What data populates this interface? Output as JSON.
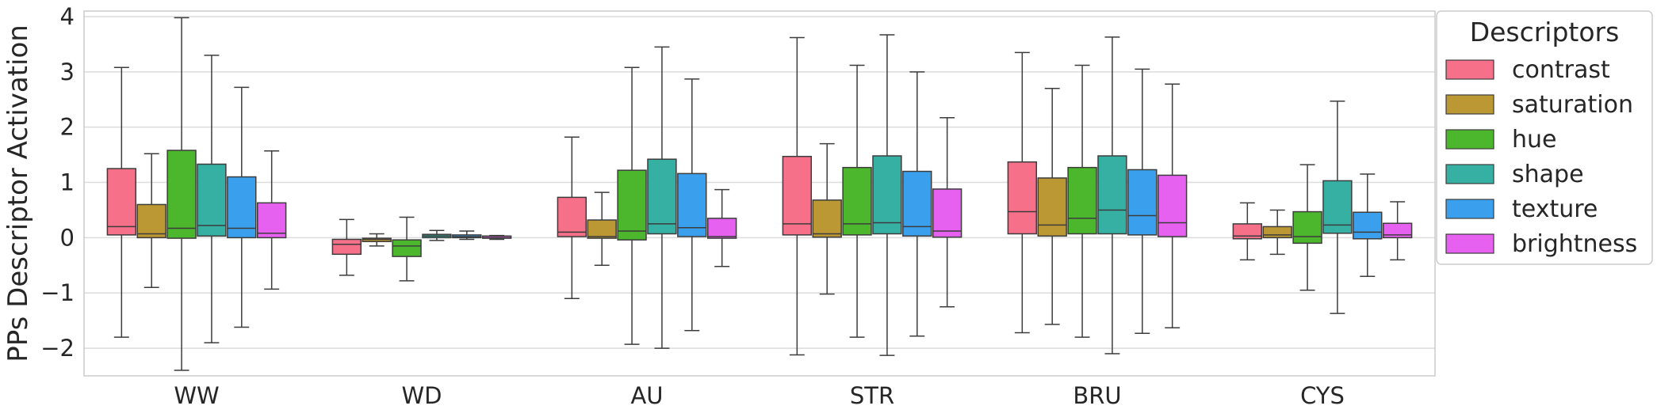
{
  "chart_data": {
    "type": "box",
    "title": "",
    "xlabel": "",
    "ylabel": "PPs Descriptor Activation",
    "ylim": [
      -2.5,
      4.1
    ],
    "yticks": [
      -2,
      -1,
      0,
      1,
      2,
      3,
      4
    ],
    "ytick_labels": [
      "−2",
      "−1",
      "0",
      "1",
      "2",
      "3",
      "4"
    ],
    "grid": true,
    "legend_position": "outside-upper-right",
    "legend_title": "Descriptors",
    "categories": [
      "WW",
      "WD",
      "AU",
      "STR",
      "BRU",
      "CYS"
    ],
    "series": [
      {
        "name": "contrast",
        "color": "#f6708a",
        "boxes": [
          {
            "whislo": -1.8,
            "q1": 0.05,
            "med": 0.2,
            "q3": 1.25,
            "whishi": 3.08
          },
          {
            "whislo": -0.68,
            "q1": -0.3,
            "med": -0.12,
            "q3": -0.03,
            "whishi": 0.33
          },
          {
            "whislo": -1.1,
            "q1": 0.02,
            "med": 0.1,
            "q3": 0.73,
            "whishi": 1.82
          },
          {
            "whislo": -2.12,
            "q1": 0.05,
            "med": 0.25,
            "q3": 1.47,
            "whishi": 3.62
          },
          {
            "whislo": -1.72,
            "q1": 0.07,
            "med": 0.47,
            "q3": 1.37,
            "whishi": 3.35
          },
          {
            "whislo": -0.4,
            "q1": -0.02,
            "med": 0.03,
            "q3": 0.25,
            "whishi": 0.63
          }
        ]
      },
      {
        "name": "saturation",
        "color": "#bb9833",
        "boxes": [
          {
            "whislo": -0.9,
            "q1": 0.0,
            "med": 0.07,
            "q3": 0.6,
            "whishi": 1.52
          },
          {
            "whislo": -0.15,
            "q1": -0.07,
            "med": -0.03,
            "q3": -0.01,
            "whishi": 0.07
          },
          {
            "whislo": -0.5,
            "q1": -0.01,
            "med": 0.02,
            "q3": 0.32,
            "whishi": 0.82
          },
          {
            "whislo": -1.02,
            "q1": 0.01,
            "med": 0.07,
            "q3": 0.68,
            "whishi": 1.7
          },
          {
            "whislo": -1.57,
            "q1": 0.03,
            "med": 0.23,
            "q3": 1.08,
            "whishi": 2.7
          },
          {
            "whislo": -0.3,
            "q1": 0.0,
            "med": 0.05,
            "q3": 0.2,
            "whishi": 0.5
          }
        ]
      },
      {
        "name": "hue",
        "color": "#4cb72d",
        "boxes": [
          {
            "whislo": -2.4,
            "q1": -0.01,
            "med": 0.17,
            "q3": 1.58,
            "whishi": 3.98
          },
          {
            "whislo": -0.78,
            "q1": -0.34,
            "med": -0.15,
            "q3": -0.04,
            "whishi": 0.37
          },
          {
            "whislo": -1.93,
            "q1": -0.04,
            "med": 0.12,
            "q3": 1.22,
            "whishi": 3.08
          },
          {
            "whislo": -1.8,
            "q1": 0.05,
            "med": 0.25,
            "q3": 1.27,
            "whishi": 3.12
          },
          {
            "whislo": -1.8,
            "q1": 0.07,
            "med": 0.35,
            "q3": 1.27,
            "whishi": 3.12
          },
          {
            "whislo": -0.95,
            "q1": -0.1,
            "med": 0.02,
            "q3": 0.47,
            "whishi": 1.32
          }
        ]
      },
      {
        "name": "shape",
        "color": "#35b0a3",
        "boxes": [
          {
            "whislo": -1.9,
            "q1": 0.03,
            "med": 0.22,
            "q3": 1.33,
            "whishi": 3.3
          },
          {
            "whislo": -0.05,
            "q1": 0.0,
            "med": 0.03,
            "q3": 0.06,
            "whishi": 0.13
          },
          {
            "whislo": -2.0,
            "q1": 0.07,
            "med": 0.25,
            "q3": 1.42,
            "whishi": 3.45
          },
          {
            "whislo": -2.13,
            "q1": 0.07,
            "med": 0.27,
            "q3": 1.48,
            "whishi": 3.67
          },
          {
            "whislo": -2.1,
            "q1": 0.07,
            "med": 0.5,
            "q3": 1.48,
            "whishi": 3.63
          },
          {
            "whislo": -1.37,
            "q1": 0.08,
            "med": 0.23,
            "q3": 1.03,
            "whishi": 2.47
          }
        ]
      },
      {
        "name": "texture",
        "color": "#3aa0ee",
        "boxes": [
          {
            "whislo": -1.62,
            "q1": 0.0,
            "med": 0.17,
            "q3": 1.1,
            "whishi": 2.72
          },
          {
            "whislo": -0.03,
            "q1": 0.0,
            "med": 0.02,
            "q3": 0.05,
            "whishi": 0.12
          },
          {
            "whislo": -1.68,
            "q1": 0.02,
            "med": 0.18,
            "q3": 1.16,
            "whishi": 2.87
          },
          {
            "whislo": -1.78,
            "q1": 0.03,
            "med": 0.2,
            "q3": 1.2,
            "whishi": 3.0
          },
          {
            "whislo": -1.73,
            "q1": 0.05,
            "med": 0.4,
            "q3": 1.23,
            "whishi": 3.05
          },
          {
            "whislo": -0.7,
            "q1": -0.02,
            "med": 0.1,
            "q3": 0.46,
            "whishi": 1.15
          }
        ]
      },
      {
        "name": "brightness",
        "color": "#e761f0",
        "boxes": [
          {
            "whislo": -0.93,
            "q1": 0.0,
            "med": 0.08,
            "q3": 0.63,
            "whishi": 1.57
          },
          {
            "whislo": -0.03,
            "q1": -0.01,
            "med": 0.0,
            "q3": 0.03,
            "whishi": 0.04
          },
          {
            "whislo": -0.52,
            "q1": -0.01,
            "med": 0.02,
            "q3": 0.35,
            "whishi": 0.87
          },
          {
            "whislo": -1.25,
            "q1": 0.01,
            "med": 0.12,
            "q3": 0.88,
            "whishi": 2.17
          },
          {
            "whislo": -1.63,
            "q1": 0.02,
            "med": 0.27,
            "q3": 1.13,
            "whishi": 2.78
          },
          {
            "whislo": -0.4,
            "q1": 0.0,
            "med": 0.05,
            "q3": 0.26,
            "whishi": 0.65
          }
        ]
      }
    ]
  }
}
